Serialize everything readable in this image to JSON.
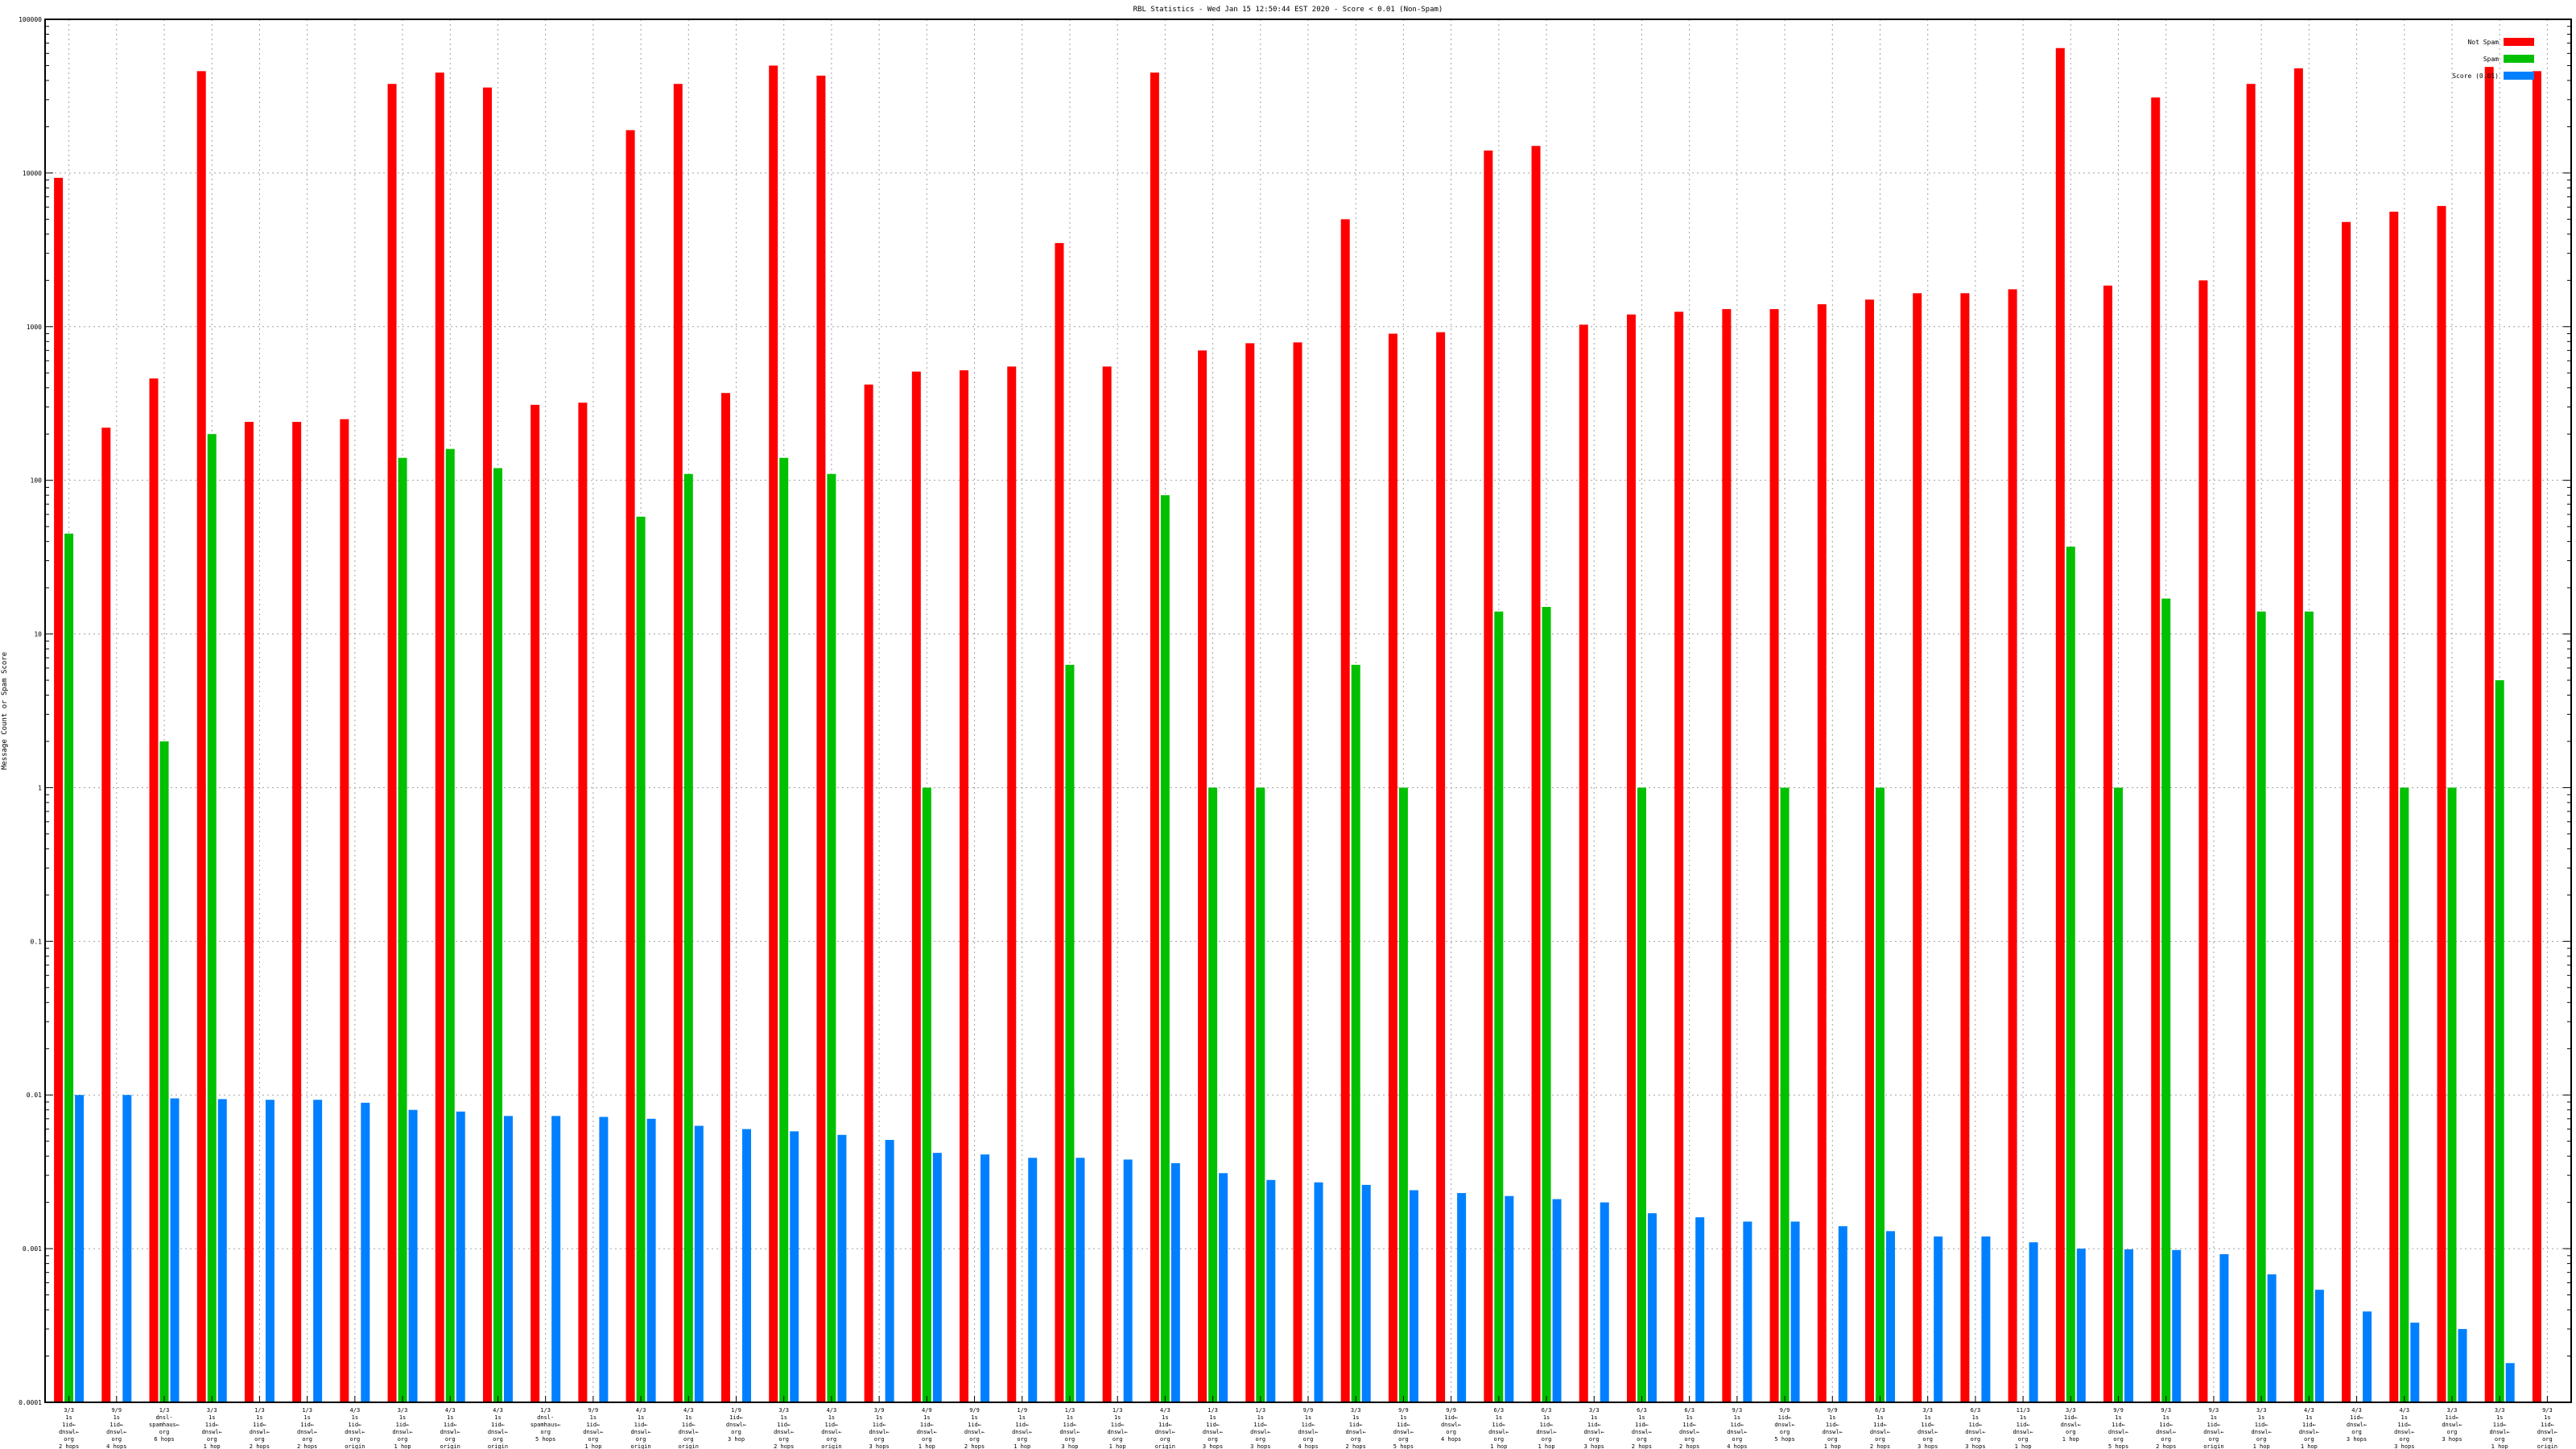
{
  "chart_data": {
    "type": "bar",
    "title": "RBL Statistics - Wed Jan 15 12:50:44 EST 2020 - Score < 0.01 (Non-Spam)",
    "xlabel": "",
    "ylabel": "Message Count or Spam Score",
    "yscale": "log",
    "ylim": [
      0.0001,
      100000
    ],
    "yticks": [
      "0.0001",
      "0.001",
      "0.01",
      "0.1",
      "1",
      "10",
      "100",
      "1000",
      "10000",
      "100000"
    ],
    "grid": true,
    "legend_position": "top-right",
    "categories": [
      [
        "3/3",
        "1s",
        "1id←",
        "dnswl←",
        "org",
        "2 hops"
      ],
      [
        "9/9",
        "1s",
        "1id←",
        "dnswl←",
        "org",
        "4 hops"
      ],
      [
        "1/3",
        "dnsl-",
        "spamhaus←",
        "org",
        "6 hops"
      ],
      [
        "3/3",
        "1s",
        "1id←",
        "dnswl←",
        "org",
        "1 hop"
      ],
      [
        "1/3",
        "1s",
        "1id←",
        "dnswl←",
        "org",
        "2 hops"
      ],
      [
        "1/3",
        "1s",
        "1id←",
        "dnswl←",
        "org",
        "2 hops"
      ],
      [
        "4/3",
        "1s",
        "1id←",
        "dnswl←",
        "org",
        "origin"
      ],
      [
        "3/3",
        "1s",
        "1id←",
        "dnswl←",
        "org",
        "1 hop"
      ],
      [
        "4/3",
        "1s",
        "1id←",
        "dnswl←",
        "org",
        "origin"
      ],
      [
        "4/3",
        "1s",
        "1id←",
        "dnswl←",
        "org",
        "origin"
      ],
      [
        "1/3",
        "dnsl-",
        "spamhaus←",
        "org",
        "5 hops"
      ],
      [
        "9/9",
        "1s",
        "1id←",
        "dnswl←",
        "org",
        "1 hop"
      ],
      [
        "4/3",
        "1s",
        "1id←",
        "dnswl←",
        "org",
        "origin"
      ],
      [
        "4/3",
        "1s",
        "1id←",
        "dnswl←",
        "org",
        "origin"
      ],
      [
        "1/9",
        "1id←",
        "dnswl←",
        "org",
        "3 hop"
      ],
      [
        "3/3",
        "1s",
        "1id←",
        "dnswl←",
        "org",
        "2 hops"
      ],
      [
        "4/3",
        "1s",
        "1id←",
        "dnswl←",
        "org",
        "origin"
      ],
      [
        "3/9",
        "1s",
        "1id←",
        "dnswl←",
        "org",
        "3 hops"
      ],
      [
        "4/9",
        "1s",
        "1id←",
        "dnswl←",
        "org",
        "1 hop"
      ],
      [
        "9/9",
        "1s",
        "1id←",
        "dnswl←",
        "org",
        "2 hops"
      ],
      [
        "1/9",
        "1s",
        "1id←",
        "dnswl←",
        "org",
        "1 hop"
      ],
      [
        "1/3",
        "1s",
        "1id←",
        "dnswl←",
        "org",
        "3 hop"
      ],
      [
        "1/3",
        "1s",
        "1id←",
        "dnswl←",
        "org",
        "1 hop"
      ],
      [
        "4/3",
        "1s",
        "1id←",
        "dnswl←",
        "org",
        "origin"
      ],
      [
        "1/3",
        "1s",
        "1id←",
        "dnswl←",
        "org",
        "3 hops"
      ],
      [
        "1/3",
        "1s",
        "1id←",
        "dnswl←",
        "org",
        "3 hops"
      ],
      [
        "9/9",
        "1s",
        "1id←",
        "dnswl←",
        "org",
        "4 hops"
      ],
      [
        "3/3",
        "1s",
        "1id←",
        "dnswl←",
        "org",
        "2 hops"
      ],
      [
        "9/9",
        "1s",
        "1id←",
        "dnswl←",
        "org",
        "5 hops"
      ],
      [
        "9/9",
        "1id←",
        "dnswl←",
        "org",
        "4 hops"
      ],
      [
        "6/3",
        "1s",
        "1id←",
        "dnswl←",
        "org",
        "1 hop"
      ],
      [
        "6/3",
        "1s",
        "1id←",
        "dnswl←",
        "org",
        "1 hop"
      ],
      [
        "3/3",
        "1s",
        "1id←",
        "dnswl←",
        "org",
        "3 hops"
      ],
      [
        "6/3",
        "1s",
        "1id←",
        "dnswl←",
        "org",
        "2 hops"
      ],
      [
        "6/3",
        "1s",
        "1id←",
        "dnswl←",
        "org",
        "2 hops"
      ],
      [
        "9/3",
        "1s",
        "1id←",
        "dnswl←",
        "org",
        "4 hops"
      ],
      [
        "9/9",
        "1id←",
        "dnswl←",
        "org",
        "5 hops"
      ],
      [
        "9/9",
        "1s",
        "1id←",
        "dnswl←",
        "org",
        "1 hop"
      ],
      [
        "6/3",
        "1s",
        "1id←",
        "dnswl←",
        "org",
        "2 hops"
      ],
      [
        "3/3",
        "1s",
        "1id←",
        "dnswl←",
        "org",
        "3 hops"
      ],
      [
        "6/3",
        "1s",
        "1id←",
        "dnswl←",
        "org",
        "3 hops"
      ],
      [
        "11/3",
        "1s",
        "1id←",
        "dnswl←",
        "org",
        "1 hop"
      ],
      [
        "3/3",
        "1id←",
        "dnswl←",
        "org",
        "1 hop"
      ],
      [
        "9/9",
        "1s",
        "1id←",
        "dnswl←",
        "org",
        "5 hops"
      ],
      [
        "9/3",
        "1s",
        "1id←",
        "dnswl←",
        "org",
        "2 hops"
      ],
      [
        "9/3",
        "1s",
        "1id←",
        "dnswl←",
        "org",
        "origin"
      ],
      [
        "3/3",
        "1s",
        "1id←",
        "dnswl←",
        "org",
        "1 hop"
      ],
      [
        "4/3",
        "1s",
        "1id←",
        "dnswl←",
        "org",
        "1 hop"
      ],
      [
        "4/3",
        "1id←",
        "dnswl←",
        "org",
        "3 hops"
      ],
      [
        "4/3",
        "1s",
        "1id←",
        "dnswl←",
        "org",
        "3 hops"
      ],
      [
        "3/3",
        "1id←",
        "dnswl←",
        "org",
        "3 hops"
      ],
      [
        "3/3",
        "1s",
        "1id←",
        "dnswl←",
        "org",
        "1 hop"
      ],
      [
        "9/3",
        "1s",
        "1id←",
        "dnswl←",
        "org",
        "origin"
      ]
    ],
    "series": [
      {
        "name": "Not Spam",
        "color": "#ff0000",
        "values": [
          9300,
          220,
          460,
          46000,
          240,
          240,
          250,
          38000,
          45000,
          36000,
          310,
          320,
          19000,
          38000,
          370,
          50000,
          43000,
          420,
          510,
          520,
          550,
          3500,
          550,
          45000,
          700,
          780,
          790,
          5000,
          900,
          920,
          14000,
          15000,
          1030,
          1200,
          1250,
          1300,
          1300,
          1400,
          1500,
          1650,
          1650,
          1750,
          65000,
          1850,
          31000,
          2000,
          38000,
          48000,
          4800,
          5600,
          6100,
          49000,
          46000
        ]
      },
      {
        "name": "Spam",
        "color": "#00c000",
        "values": [
          45,
          null,
          2,
          200,
          null,
          null,
          null,
          140,
          160,
          120,
          null,
          null,
          58,
          110,
          null,
          140,
          110,
          null,
          1,
          null,
          null,
          6.3,
          null,
          80,
          1,
          1,
          null,
          6.3,
          1,
          null,
          14,
          15,
          null,
          1,
          null,
          null,
          1,
          null,
          1,
          null,
          null,
          null,
          37,
          1,
          17,
          null,
          14,
          14,
          null,
          1,
          1,
          5,
          null
        ]
      },
      {
        "name": "Score (0.01)",
        "color": "#0080ff",
        "values": [
          0.01,
          0.01,
          0.0095,
          0.0094,
          0.0093,
          0.0093,
          0.0089,
          0.008,
          0.0078,
          0.0073,
          0.0073,
          0.0072,
          0.007,
          0.0063,
          0.006,
          0.0058,
          0.0055,
          0.0051,
          0.0042,
          0.0041,
          0.0039,
          0.0039,
          0.0038,
          0.0036,
          0.0031,
          0.0028,
          0.0027,
          0.0026,
          0.0024,
          0.0023,
          0.0022,
          0.0021,
          0.002,
          0.0017,
          0.0016,
          0.0015,
          0.0015,
          0.0014,
          0.0013,
          0.0012,
          0.0012,
          0.0011,
          0.001,
          0.00099,
          0.00098,
          0.00092,
          0.00068,
          0.00054,
          0.00039,
          0.00033,
          0.0003,
          0.00018,
          null
        ]
      }
    ]
  }
}
